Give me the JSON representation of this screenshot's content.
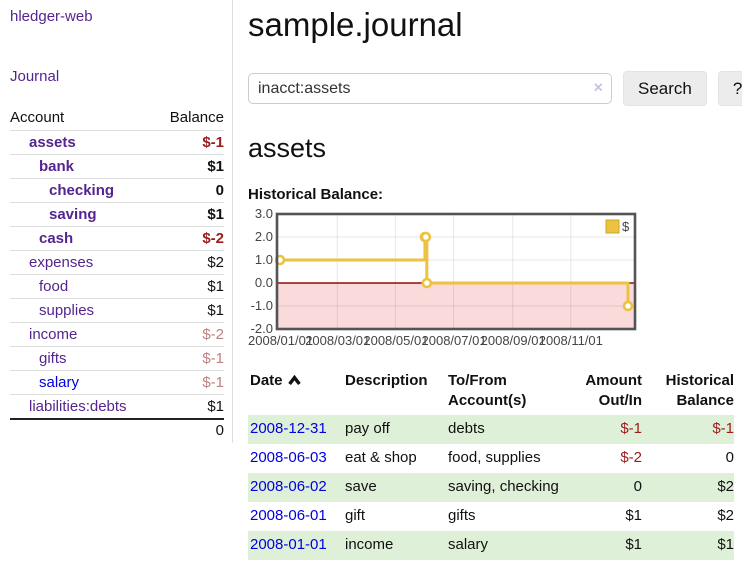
{
  "app": {
    "brand": "hledger-web",
    "nav_journal": "Journal"
  },
  "sidebar": {
    "table": {
      "col_account": "Account",
      "col_balance": "Balance"
    },
    "accounts": [
      {
        "name": "assets",
        "balance": "$-1",
        "depth": 1,
        "bold": true,
        "neg": "strong"
      },
      {
        "name": "bank",
        "balance": "$1",
        "depth": 2,
        "bold": true,
        "neg": "none"
      },
      {
        "name": "checking",
        "balance": "0",
        "depth": 3,
        "bold": true,
        "neg": "none"
      },
      {
        "name": "saving",
        "balance": "$1",
        "depth": 3,
        "bold": true,
        "neg": "none"
      },
      {
        "name": "cash",
        "balance": "$-2",
        "depth": 2,
        "bold": true,
        "neg": "strong"
      },
      {
        "name": "expenses",
        "balance": "$2",
        "depth": 1,
        "bold": false,
        "neg": "none"
      },
      {
        "name": "food",
        "balance": "$1",
        "depth": 2,
        "bold": false,
        "neg": "none"
      },
      {
        "name": "supplies",
        "balance": "$1",
        "depth": 2,
        "bold": false,
        "neg": "none"
      },
      {
        "name": "income",
        "balance": "$-2",
        "depth": 1,
        "bold": false,
        "neg": "faded"
      },
      {
        "name": "gifts",
        "balance": "$-1",
        "depth": 2,
        "bold": false,
        "neg": "faded"
      },
      {
        "name": "salary",
        "balance": "$-1",
        "depth": 2,
        "bold": false,
        "neg": "faded",
        "link_color": "blue"
      },
      {
        "name": "liabilities:debts",
        "balance": "$1",
        "depth": 1,
        "bold": false,
        "neg": "none"
      }
    ],
    "total": "0"
  },
  "header": {
    "title": "sample.journal"
  },
  "search": {
    "value": "inacct:assets",
    "clear_icon": "×",
    "button": "Search",
    "help_button": "?"
  },
  "account_page": {
    "heading": "assets",
    "chart_label": "Historical Balance:"
  },
  "chart_data": {
    "type": "line",
    "style": "step",
    "title": "Historical Balance",
    "series": [
      {
        "name": "$",
        "color": "#edc240",
        "points": [
          {
            "date": "2008-01-01",
            "value": 1
          },
          {
            "date": "2008-06-01",
            "value": 2
          },
          {
            "date": "2008-06-02",
            "value": 2
          },
          {
            "date": "2008-06-03",
            "value": 0
          },
          {
            "date": "2008-12-31",
            "value": -1
          }
        ]
      }
    ],
    "ylim": [
      -2.0,
      3.0
    ],
    "yticks": [
      3.0,
      2.0,
      1.0,
      0.0,
      -1.0,
      -2.0
    ],
    "xticks": [
      "2008/01/01",
      "2008/03/01",
      "2008/05/01",
      "2008/07/01",
      "2008/09/01",
      "2008/11/01"
    ],
    "x_start": "2008/01/01",
    "x_span_days": 365,
    "grid": true,
    "legend": {
      "label": "$",
      "position": "top-right"
    },
    "negative_region_fill": "#fadada",
    "zero_line_color": "#8c0d0d",
    "border_color": "#545454"
  },
  "register": {
    "columns": [
      "Date",
      "Description",
      "To/From Account(s)",
      "Amount Out/In",
      "Historical Balance"
    ],
    "rows": [
      {
        "date": "2008-12-31",
        "description": "pay off",
        "accounts": "debts",
        "amount": "$-1",
        "balance": "$-1",
        "highlight": true
      },
      {
        "date": "2008-06-03",
        "description": "eat & shop",
        "accounts": "food, supplies",
        "amount": "$-2",
        "balance": "0",
        "highlight": false
      },
      {
        "date": "2008-06-02",
        "description": "save",
        "accounts": "saving, checking",
        "amount": "0",
        "balance": "$2",
        "highlight": true
      },
      {
        "date": "2008-06-01",
        "description": "gift",
        "accounts": "gifts",
        "amount": "$1",
        "balance": "$2",
        "highlight": false
      },
      {
        "date": "2008-01-01",
        "description": "income",
        "accounts": "salary",
        "amount": "$1",
        "balance": "$1",
        "highlight": true
      }
    ]
  },
  "colors": {
    "accent_purple": "#55258f",
    "link_blue": "#0000e0",
    "negative": "#9d1b1b",
    "negative_faded": "#bd8282",
    "row_highlight": "#dff0d8",
    "series_gold": "#edc240",
    "negative_region": "#fadada",
    "zero_line": "#8c0d0d"
  }
}
